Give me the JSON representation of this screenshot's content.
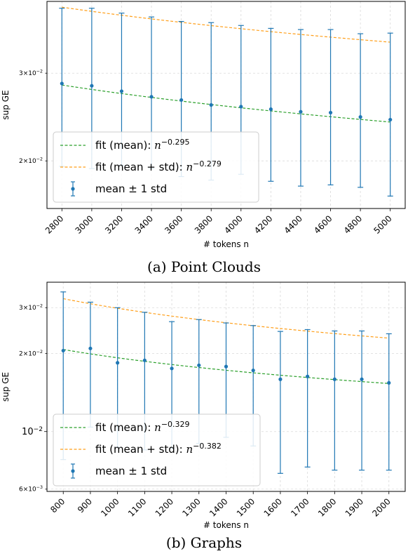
{
  "chart_data": [
    {
      "type": "scatter",
      "caption": "(a) Point Clouds",
      "xlabel": "# tokens n",
      "ylabel": "sup GE",
      "yscale": "log",
      "grid": true,
      "legend_position": "lower-left",
      "xlim": [
        2700,
        5100
      ],
      "ylim": [
        0.01605,
        0.0418
      ],
      "x_ticks": [
        2800,
        3000,
        3200,
        3400,
        3600,
        3800,
        4000,
        4200,
        4400,
        4600,
        4800,
        5000
      ],
      "y_ticks": [
        {
          "value": 0.02,
          "label_base": "2×10",
          "label_exp": "−2"
        },
        {
          "value": 0.03,
          "label_base": "3×10",
          "label_exp": "−2"
        }
      ],
      "colors": {
        "points": "#1f77b4",
        "fit_mean": "#2ca02c",
        "fit_std": "#ff9f1a"
      },
      "x": [
        2800,
        3000,
        3200,
        3400,
        3600,
        3800,
        4000,
        4200,
        4400,
        4600,
        4800,
        5000
      ],
      "mean": [
        0.0286,
        0.0283,
        0.0276,
        0.0269,
        0.0265,
        0.0259,
        0.0257,
        0.0254,
        0.0251,
        0.025,
        0.0245,
        0.0242
      ],
      "mean_plus_std": [
        0.0405,
        0.0405,
        0.0396,
        0.0389,
        0.0381,
        0.0379,
        0.0374,
        0.0369,
        0.0367,
        0.0367,
        0.036,
        0.0361
      ],
      "mean_minus_std": [
        0.0195,
        0.0193,
        0.0196,
        0.0193,
        0.0186,
        0.0183,
        0.0188,
        0.0182,
        0.0178,
        0.0179,
        0.0177,
        0.017
      ],
      "fit_mean": {
        "value_at_xmin": 0.0284,
        "exponent": -0.295
      },
      "fit_std": {
        "value_at_xmin": 0.0407,
        "exponent": -0.279
      },
      "legend": [
        {
          "key": "fit_mean",
          "label": "fit (mean): ",
          "math_base": "n",
          "math_exp": "−0.295"
        },
        {
          "key": "fit_std",
          "label": "fit (mean + std): ",
          "math_base": "n",
          "math_exp": "−0.279"
        },
        {
          "key": "points",
          "label": "mean ± 1 std"
        }
      ]
    },
    {
      "type": "scatter",
      "caption": "(b) Graphs",
      "xlabel": "# tokens n",
      "ylabel": "sup GE",
      "yscale": "log",
      "grid": true,
      "legend_position": "lower-left",
      "xlim": [
        740,
        2060
      ],
      "ylim": [
        0.00588,
        0.0376
      ],
      "x_ticks": [
        800,
        900,
        1000,
        1100,
        1200,
        1300,
        1400,
        1500,
        1600,
        1700,
        1800,
        1900,
        2000
      ],
      "y_ticks": [
        {
          "value": 0.006,
          "label_base": "6×10",
          "label_exp": "−3"
        },
        {
          "value": 0.01,
          "label_base": "10",
          "label_exp": "−2",
          "major": true
        },
        {
          "value": 0.02,
          "label_base": "2×10",
          "label_exp": "−2"
        },
        {
          "value": 0.03,
          "label_base": "3×10",
          "label_exp": "−2"
        }
      ],
      "colors": {
        "points": "#1f77b4",
        "fit_mean": "#2ca02c",
        "fit_std": "#ff9f1a"
      },
      "x": [
        800,
        900,
        1000,
        1100,
        1200,
        1300,
        1400,
        1500,
        1600,
        1700,
        1800,
        1900,
        2000
      ],
      "mean": [
        0.0205,
        0.0209,
        0.0184,
        0.0188,
        0.0175,
        0.018,
        0.0178,
        0.0172,
        0.0159,
        0.0163,
        0.0159,
        0.0159,
        0.0154
      ],
      "mean_plus_std": [
        0.0345,
        0.0315,
        0.03,
        0.0288,
        0.0265,
        0.027,
        0.0262,
        0.0256,
        0.0243,
        0.0247,
        0.0244,
        0.0244,
        0.0238
      ],
      "mean_minus_std": [
        0.0078,
        0.0104,
        0.0087,
        0.0085,
        0.0086,
        0.009,
        0.0095,
        0.0088,
        0.0069,
        0.0073,
        0.0071,
        0.0071,
        0.0071
      ],
      "fit_mean": {
        "value_at_xmin": 0.0207,
        "exponent": -0.329
      },
      "fit_std": {
        "value_at_xmin": 0.0325,
        "exponent": -0.382
      },
      "legend": [
        {
          "key": "fit_mean",
          "label": "fit (mean): ",
          "math_base": "n",
          "math_exp": "−0.329"
        },
        {
          "key": "fit_std",
          "label": "fit (mean + std): ",
          "math_base": "n",
          "math_exp": "−0.382"
        },
        {
          "key": "points",
          "label": "mean ± 1 std"
        }
      ]
    }
  ]
}
